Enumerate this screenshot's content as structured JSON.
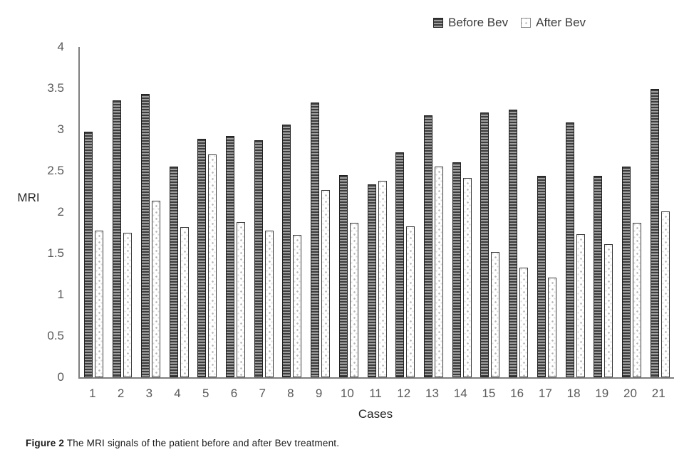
{
  "figure": {
    "caption_label": "Figure 2",
    "caption_text": " The MRI signals of the patient before and after Bev treatment."
  },
  "chart_data": {
    "type": "bar",
    "title": "",
    "xlabel": "Cases",
    "ylabel": "MRI",
    "ylim": [
      0,
      4
    ],
    "yticks": [
      0,
      0.5,
      1,
      1.5,
      2,
      2.5,
      3,
      3.5,
      4
    ],
    "ytick_labels": [
      "0",
      "0.5",
      "1",
      "1.5",
      "2",
      "2.5",
      "3",
      "3.5",
      "4"
    ],
    "grid": false,
    "legend_position": "top-right",
    "categories": [
      "1",
      "2",
      "3",
      "4",
      "5",
      "6",
      "7",
      "8",
      "9",
      "10",
      "11",
      "12",
      "13",
      "14",
      "15",
      "16",
      "17",
      "18",
      "19",
      "20",
      "21"
    ],
    "series": [
      {
        "name": "Before Bev",
        "pattern": "horizontal-stripes",
        "color": "#3d3d3d",
        "values": [
          2.97,
          3.35,
          3.43,
          2.55,
          2.89,
          2.92,
          2.87,
          3.06,
          3.33,
          2.45,
          2.34,
          2.72,
          3.17,
          2.6,
          3.21,
          3.24,
          2.44,
          3.09,
          2.44,
          2.55,
          3.49
        ]
      },
      {
        "name": "After Bev",
        "pattern": "dots",
        "color": "#ffffff",
        "values": [
          1.78,
          1.75,
          2.14,
          1.82,
          2.7,
          1.88,
          1.78,
          1.72,
          2.27,
          1.87,
          2.38,
          1.83,
          2.55,
          2.41,
          1.52,
          1.33,
          1.21,
          1.73,
          1.61,
          1.87,
          2.01
        ]
      }
    ],
    "axis_color": "#7f7f7f",
    "tick_label_color": "#595959"
  }
}
